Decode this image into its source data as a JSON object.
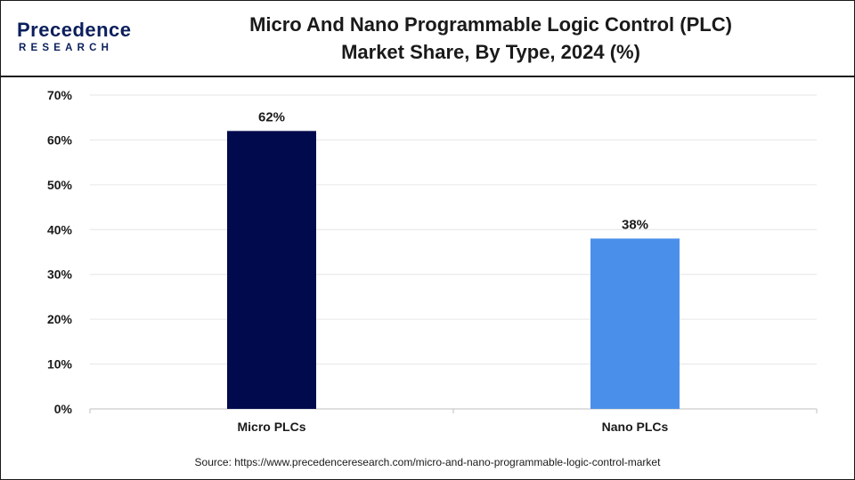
{
  "logo": {
    "top_text": "Precedence",
    "bottom_text": "RESEARCH"
  },
  "title": {
    "line1": "Micro And Nano Programmable Logic Control (PLC)",
    "line2": "Market Share, By Type, 2024 (%)"
  },
  "source": "Source: https://www.precedenceresearch.com/micro-and-nano-programmable-logic-control-market",
  "chart_data": {
    "type": "bar",
    "categories": [
      "Micro PLCs",
      "Nano PLCs"
    ],
    "values": [
      62,
      38
    ],
    "data_labels": [
      "62%",
      "38%"
    ],
    "colors": [
      "#020a4e",
      "#4a90ea"
    ],
    "yticks": [
      "0%",
      "10%",
      "20%",
      "30%",
      "40%",
      "50%",
      "60%",
      "70%"
    ],
    "ylim": [
      0,
      70
    ],
    "grid": true,
    "legend": "none"
  }
}
